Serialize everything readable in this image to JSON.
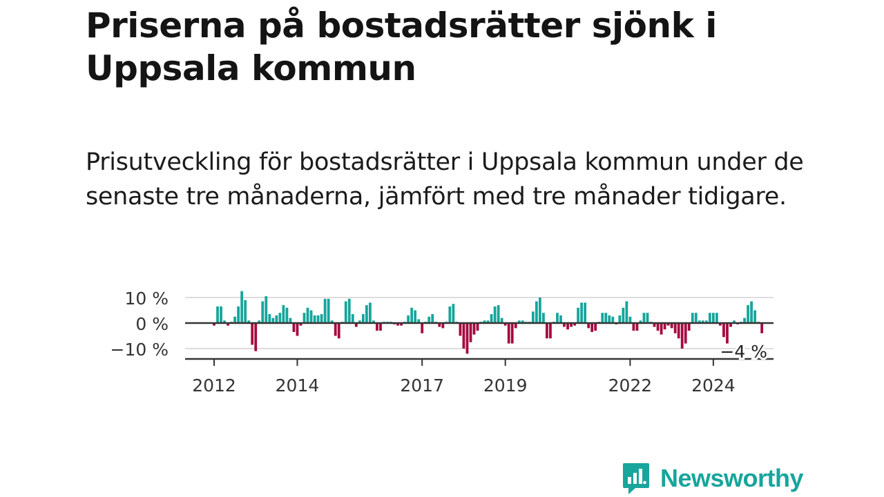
{
  "title": "Priserna på bostadsrätter sjönk i Uppsala kommun",
  "subtitle": "Prisutveckling för bostadsrätter i Uppsala kommun under de senaste tre månaderna, jämfört med tre månader tidigare.",
  "brand": {
    "name": "Newsworthy",
    "color": "#17a59c"
  },
  "chart_data": {
    "type": "bar",
    "title": "Priserna på bostadsrätter sjönk i Uppsala kommun",
    "xlabel": "",
    "ylabel": "",
    "unit": "%",
    "ylim": [
      -14,
      13
    ],
    "grid": true,
    "legend": "none",
    "colors": {
      "positive": "#17a59c",
      "negative": "#a5093f",
      "zero_line": "#333333",
      "grid": "#dddddd"
    },
    "x_start": {
      "year": 2012,
      "month": 1
    },
    "y_ticks": [
      {
        "value": 10,
        "label": "10 %"
      },
      {
        "value": 0,
        "label": "0 %"
      },
      {
        "value": -10,
        "label": "−10 %"
      }
    ],
    "x_ticks": [
      {
        "label": "2012",
        "year": 2012
      },
      {
        "label": "2014",
        "year": 2014
      },
      {
        "label": "2017",
        "year": 2017
      },
      {
        "label": "2019",
        "year": 2019
      },
      {
        "label": "2022",
        "year": 2022
      },
      {
        "label": "2024",
        "year": 2024
      }
    ],
    "last_value_label": "−4 %",
    "values": [
      -1,
      6.5,
      6.5,
      1,
      -1,
      0.5,
      2.5,
      6.5,
      12.5,
      9,
      1,
      -8.5,
      -11,
      1,
      8.5,
      10.5,
      3.5,
      2,
      3,
      4,
      7,
      6,
      2,
      -3.5,
      -5,
      -1,
      4,
      6,
      5,
      3,
      3,
      3.5,
      9.5,
      9.5,
      1,
      -5,
      -6,
      0.5,
      8.5,
      9.5,
      3.5,
      -1.5,
      1,
      3.5,
      7,
      8,
      1,
      -3,
      -3,
      0.5,
      0.5,
      0.5,
      -0.5,
      -1,
      -1,
      0.5,
      3,
      6,
      5,
      1.5,
      -4,
      0.5,
      2.5,
      3.5,
      0.5,
      -1.5,
      -2,
      0.5,
      6.5,
      7.5,
      0.5,
      -5,
      -10,
      -12,
      -7.5,
      -4.5,
      -3,
      0.5,
      1,
      1,
      3.5,
      6.5,
      7,
      2,
      -1,
      -8,
      -8,
      -2,
      1,
      1,
      0.5,
      0.5,
      4.5,
      8.5,
      10,
      4,
      -6,
      -6,
      0.5,
      4,
      3,
      -1.5,
      -2.5,
      -1.5,
      -1,
      6,
      8,
      8,
      -2,
      -3.5,
      -3,
      0.5,
      4,
      4,
      3,
      2.5,
      -0.5,
      3,
      6,
      8.5,
      2.5,
      -3,
      -3,
      1,
      4,
      4,
      0.5,
      -1.5,
      -3,
      -4.5,
      -2.5,
      -1,
      -2,
      -4,
      -6,
      -10,
      -8,
      -3,
      4,
      4,
      1,
      1,
      1,
      4,
      4,
      4,
      -1,
      -5.5,
      -8,
      -1.5,
      1,
      -0.5,
      0.5,
      2,
      7,
      8.5,
      5,
      0.5,
      -4
    ]
  }
}
